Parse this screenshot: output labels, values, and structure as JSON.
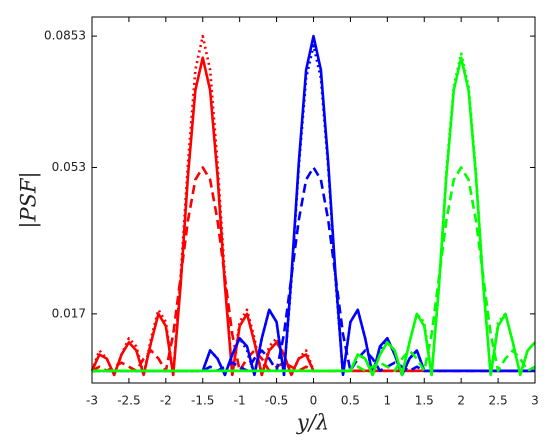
{
  "chart_data": {
    "type": "line",
    "x_label": "y/λ",
    "y_label": "|PSF|",
    "x": [
      -3,
      -2.9,
      -2.8,
      -2.7,
      -2.6,
      -2.5,
      -2.4,
      -2.3,
      -2.2,
      -2.1,
      -2,
      -1.9,
      -1.8,
      -1.7,
      -1.6,
      -1.5,
      -1.4,
      -1.3,
      -1.2,
      -1.1,
      -1,
      -0.9,
      -0.8,
      -0.7,
      -0.6,
      -0.5,
      -0.4,
      -0.3,
      -0.2,
      -0.1,
      0,
      0.1,
      0.2,
      0.3,
      0.4,
      0.5,
      0.6,
      0.7,
      0.8,
      0.9,
      1,
      1.1,
      1.2,
      1.3,
      1.4,
      1.5,
      1.6,
      1.7,
      1.8,
      1.9,
      2,
      2.1,
      2.2,
      2.3,
      2.4,
      2.5,
      2.6,
      2.7,
      2.8,
      2.9,
      3
    ],
    "xlim": [
      -3,
      3
    ],
    "xticks": [
      -3,
      -2.5,
      -2,
      -1.5,
      -1,
      -0.5,
      0,
      0.5,
      1,
      1.5,
      2,
      2.5,
      3
    ],
    "ylim": [
      0,
      0.09
    ],
    "yticks": [
      0.017,
      0.053,
      0.0853
    ],
    "series": [
      {
        "color": "#ff0000",
        "dash": "solid",
        "values": [
          0.003,
          0.007,
          0.006,
          0.002,
          0.007,
          0.01,
          0.008,
          0.002,
          0.01,
          0.017,
          0.014,
          0.002,
          0.024,
          0.051,
          0.072,
          0.08,
          0.072,
          0.051,
          0.024,
          0.002,
          0.014,
          0.017,
          0.01,
          0.002,
          0.008,
          0.01,
          0.007,
          0.002,
          0.006,
          0.007,
          0.003,
          0.003,
          0.003,
          0.003,
          0.003,
          0.003,
          0.003,
          0.003,
          0.003,
          0.003,
          0.003,
          0.003,
          0.003,
          0.003,
          0.003,
          0.003,
          0.003,
          0.003,
          0.003,
          0.003,
          0.003,
          0.003,
          0.003,
          0.003,
          0.003,
          0.003,
          0.003,
          0.003,
          0.003,
          0.003,
          0.003
        ]
      },
      {
        "color": "#ff0000",
        "dash": "dotted",
        "values": [
          0.003,
          0.008,
          0.006,
          0.002,
          0.007,
          0.011,
          0.009,
          0.002,
          0.011,
          0.018,
          0.015,
          0.002,
          0.026,
          0.054,
          0.077,
          0.0853,
          0.077,
          0.054,
          0.026,
          0.002,
          0.015,
          0.018,
          0.011,
          0.002,
          0.009,
          0.011,
          0.007,
          0.002,
          0.006,
          0.008,
          0.003,
          0.003,
          0.003,
          0.003,
          0.003,
          0.003,
          0.003,
          0.003,
          0.003,
          0.003,
          0.003,
          0.003,
          0.003,
          0.003,
          0.003,
          0.003,
          0.003,
          0.003,
          0.003,
          0.003,
          0.003,
          0.003,
          0.003,
          0.003,
          0.003,
          0.003,
          0.003,
          0.003,
          0.003,
          0.003,
          0.003
        ]
      },
      {
        "color": "#ff0000",
        "dash": "dashed",
        "values": [
          0.003,
          0.004,
          0.003,
          0.004,
          0.005,
          0.004,
          0.003,
          0.006,
          0.008,
          0.006,
          0.003,
          0.012,
          0.026,
          0.04,
          0.05,
          0.053,
          0.05,
          0.04,
          0.026,
          0.012,
          0.003,
          0.006,
          0.008,
          0.006,
          0.003,
          0.004,
          0.005,
          0.004,
          0.003,
          0.004,
          0.003,
          0.003,
          0.003,
          0.003,
          0.003,
          0.003,
          0.003,
          0.003,
          0.003,
          0.003,
          0.003,
          0.003,
          0.003,
          0.003,
          0.003,
          0.003,
          0.003,
          0.003,
          0.003,
          0.003,
          0.003,
          0.003,
          0.003,
          0.003,
          0.003,
          0.003,
          0.003,
          0.003,
          0.003,
          0.003,
          0.003
        ]
      },
      {
        "color": "#0000ff",
        "dash": "solid",
        "values": [
          0.003,
          0.003,
          0.003,
          0.003,
          0.003,
          0.003,
          0.003,
          0.003,
          0.003,
          0.003,
          0.003,
          0.003,
          0.003,
          0.003,
          0.003,
          0.003,
          0.008,
          0.006,
          0.002,
          0.007,
          0.011,
          0.009,
          0.002,
          0.011,
          0.018,
          0.015,
          0.002,
          0.026,
          0.054,
          0.077,
          0.0853,
          0.077,
          0.054,
          0.026,
          0.002,
          0.015,
          0.018,
          0.011,
          0.002,
          0.009,
          0.011,
          0.007,
          0.002,
          0.006,
          0.008,
          0.003,
          0.003,
          0.003,
          0.003,
          0.003,
          0.003,
          0.003,
          0.003,
          0.003,
          0.003,
          0.003,
          0.003,
          0.003,
          0.003,
          0.003,
          0.003
        ]
      },
      {
        "color": "#0000ff",
        "dash": "dotted",
        "values": [
          0.003,
          0.003,
          0.003,
          0.003,
          0.003,
          0.003,
          0.003,
          0.003,
          0.003,
          0.003,
          0.003,
          0.003,
          0.003,
          0.003,
          0.003,
          0.003,
          0.008,
          0.006,
          0.002,
          0.007,
          0.011,
          0.008,
          0.002,
          0.011,
          0.018,
          0.015,
          0.002,
          0.025,
          0.053,
          0.075,
          0.083,
          0.075,
          0.053,
          0.025,
          0.002,
          0.015,
          0.018,
          0.011,
          0.002,
          0.008,
          0.011,
          0.007,
          0.002,
          0.006,
          0.008,
          0.003,
          0.003,
          0.003,
          0.003,
          0.003,
          0.003,
          0.003,
          0.003,
          0.003,
          0.003,
          0.003,
          0.003,
          0.003,
          0.003,
          0.003,
          0.003
        ]
      },
      {
        "color": "#0000ff",
        "dash": "dashed",
        "values": [
          0.003,
          0.003,
          0.003,
          0.003,
          0.003,
          0.003,
          0.003,
          0.003,
          0.003,
          0.003,
          0.003,
          0.003,
          0.003,
          0.003,
          0.003,
          0.003,
          0.004,
          0.003,
          0.004,
          0.005,
          0.004,
          0.003,
          0.006,
          0.008,
          0.006,
          0.003,
          0.012,
          0.026,
          0.04,
          0.05,
          0.053,
          0.05,
          0.04,
          0.026,
          0.012,
          0.003,
          0.006,
          0.008,
          0.006,
          0.003,
          0.004,
          0.005,
          0.004,
          0.003,
          0.004,
          0.003,
          0.003,
          0.003,
          0.003,
          0.003,
          0.003,
          0.003,
          0.003,
          0.003,
          0.003,
          0.003,
          0.003,
          0.003,
          0.003,
          0.003,
          0.003
        ]
      },
      {
        "color": "#00ff00",
        "dash": "solid",
        "values": [
          0.003,
          0.003,
          0.003,
          0.003,
          0.003,
          0.003,
          0.003,
          0.003,
          0.003,
          0.003,
          0.003,
          0.003,
          0.003,
          0.003,
          0.003,
          0.003,
          0.003,
          0.003,
          0.003,
          0.003,
          0.003,
          0.003,
          0.003,
          0.003,
          0.003,
          0.003,
          0.003,
          0.003,
          0.003,
          0.003,
          0.003,
          0.003,
          0.003,
          0.003,
          0.003,
          0.003,
          0.007,
          0.006,
          0.002,
          0.007,
          0.01,
          0.008,
          0.002,
          0.01,
          0.017,
          0.014,
          0.002,
          0.024,
          0.051,
          0.072,
          0.08,
          0.072,
          0.051,
          0.024,
          0.002,
          0.014,
          0.017,
          0.01,
          0.002,
          0.008,
          0.01
        ]
      },
      {
        "color": "#00ff00",
        "dash": "dotted",
        "values": [
          0.003,
          0.003,
          0.003,
          0.003,
          0.003,
          0.003,
          0.003,
          0.003,
          0.003,
          0.003,
          0.003,
          0.003,
          0.003,
          0.003,
          0.003,
          0.003,
          0.003,
          0.003,
          0.003,
          0.003,
          0.003,
          0.003,
          0.003,
          0.003,
          0.003,
          0.003,
          0.003,
          0.003,
          0.003,
          0.003,
          0.003,
          0.003,
          0.003,
          0.003,
          0.003,
          0.003,
          0.007,
          0.006,
          0.002,
          0.007,
          0.01,
          0.008,
          0.002,
          0.01,
          0.017,
          0.015,
          0.002,
          0.024,
          0.052,
          0.073,
          0.081,
          0.073,
          0.052,
          0.024,
          0.002,
          0.015,
          0.017,
          0.01,
          0.002,
          0.008,
          0.01
        ]
      },
      {
        "color": "#00ff00",
        "dash": "dashed",
        "values": [
          0.003,
          0.003,
          0.003,
          0.003,
          0.003,
          0.003,
          0.003,
          0.003,
          0.003,
          0.003,
          0.003,
          0.003,
          0.003,
          0.003,
          0.003,
          0.003,
          0.003,
          0.003,
          0.003,
          0.003,
          0.003,
          0.003,
          0.003,
          0.003,
          0.003,
          0.003,
          0.003,
          0.003,
          0.003,
          0.003,
          0.003,
          0.003,
          0.003,
          0.003,
          0.003,
          0.003,
          0.004,
          0.003,
          0.004,
          0.005,
          0.004,
          0.003,
          0.006,
          0.008,
          0.006,
          0.003,
          0.012,
          0.026,
          0.04,
          0.05,
          0.053,
          0.05,
          0.04,
          0.026,
          0.012,
          0.003,
          0.006,
          0.008,
          0.006,
          0.003,
          0.004
        ]
      }
    ]
  }
}
